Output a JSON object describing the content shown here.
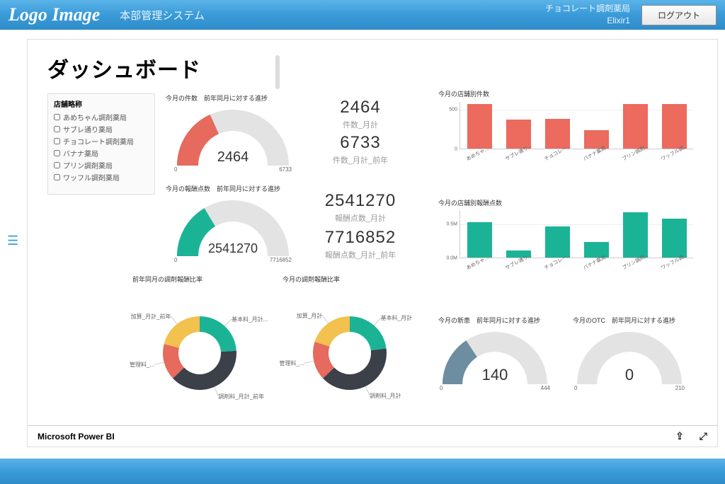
{
  "header": {
    "logo": "Logo Image",
    "system_title": "本部管理システム",
    "pharmacy_name": "チョコレート調剤薬局",
    "user": "Elixir1",
    "logout": "ログアウト"
  },
  "page_title": "ダッシュボード",
  "footer": {
    "brand": "Microsoft Power BI"
  },
  "filter": {
    "title": "店舗略称",
    "items": [
      "あめちゃん調剤薬局",
      "サブレ通り薬局",
      "チョコレート調剤薬局",
      "バナナ薬局",
      "プリン調剤薬局",
      "ワッフル調剤薬局"
    ]
  },
  "gauge1": {
    "title": "今月の件数　前年同月に対する進捗",
    "value": 2464,
    "min": 0,
    "max": 6733,
    "fill_color": "#e66a5d",
    "track_color": "#e3e3e3",
    "value_fontsize": 20
  },
  "gauge2": {
    "title": "今月の報酬点数　前年同月に対する進捗",
    "value": 2541270,
    "min": 0,
    "max": 7716852,
    "fill_color": "#1bb396",
    "track_color": "#e3e3e3"
  },
  "gauge3": {
    "title": "今月の新患　前年同月に対する進捗",
    "value": 140,
    "min": 0,
    "max": 444,
    "fill_color": "#6d8ea0",
    "track_color": "#e3e3e3"
  },
  "gauge4": {
    "title": "今月のOTC　前年同月に対する進捗",
    "value": 0,
    "min": 0,
    "max": 210,
    "fill_color": "#6d8ea0",
    "track_color": "#e3e3e3"
  },
  "kpi": [
    {
      "value": "2464",
      "label": "件数_月計"
    },
    {
      "value": "6733",
      "label": "件数_月計_前年"
    },
    {
      "value": "2541270",
      "label": "報酬点数_月計"
    },
    {
      "value": "7716852",
      "label": "報酬点数_月計_前年"
    }
  ],
  "bar1": {
    "title": "今月の店舗別件数",
    "categories": [
      "あめちゃ...",
      "サブレ通り...",
      "チョコレー...",
      "バナナ薬局",
      "プリン調剤...",
      "ワッフル調..."
    ],
    "values": [
      560,
      370,
      380,
      230,
      560,
      560
    ],
    "ymax": 600,
    "ytick": 500,
    "ytick_label": "500",
    "bar_color": "#ec6a5e",
    "bar_width": 0.62
  },
  "bar2": {
    "title": "今月の店舗別報酬点数",
    "categories": [
      "あめちゃ...",
      "サブレ通り...",
      "チョコレー...",
      "バナナ薬局",
      "プリン調剤...",
      "ワッフル調..."
    ],
    "values": [
      520000,
      100000,
      460000,
      230000,
      670000,
      580000
    ],
    "ymax": 700000,
    "ytick": 500000,
    "ytick_label": "0.5M",
    "ytick0_label": "0.0M",
    "bar_color": "#1bb396",
    "bar_width": 0.62
  },
  "donut1": {
    "title": "前年同月の調剤報酬比率",
    "slices": [
      {
        "label": "基本料_月計...",
        "value": 24,
        "color": "#1bb396"
      },
      {
        "label": "調剤料_月計_前年",
        "value": 39,
        "color": "#3b4049"
      },
      {
        "label": "管理料_...",
        "value": 16,
        "color": "#e66a5d"
      },
      {
        "label": "加算_月計_前年",
        "value": 21,
        "color": "#f2c14e"
      }
    ]
  },
  "donut2": {
    "title": "今月の調剤報酬比率",
    "slices": [
      {
        "label": "基本料_月計",
        "value": 23,
        "color": "#1bb396"
      },
      {
        "label": "調剤料_月計",
        "value": 40,
        "color": "#3b4049"
      },
      {
        "label": "管理料_...",
        "value": 17,
        "color": "#e66a5d"
      },
      {
        "label": "加算_月計",
        "value": 20,
        "color": "#f2c14e"
      }
    ]
  },
  "colors": {
    "accent": "#3a9bd9"
  }
}
